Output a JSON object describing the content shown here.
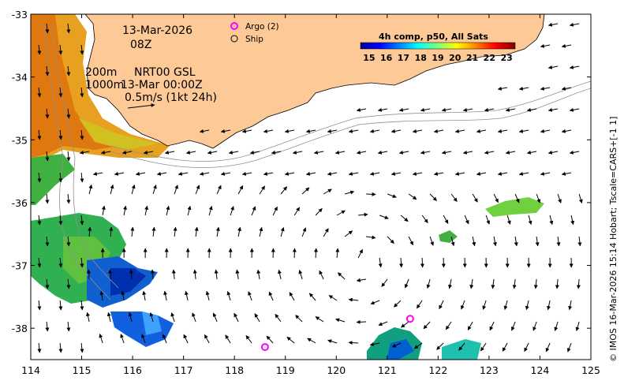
{
  "map": {
    "date_label": "13-Mar-2026",
    "time_label": "08Z",
    "depth_shallow": "200m",
    "depth_deep": "1000m",
    "product_line1": "NRT00 GSL",
    "product_line2": "13-Mar 00:00Z",
    "scale_label": "0.5m/s (1kt 24h)",
    "side_credit": "© IMOS 16-Mar-2026 15:14 Hobart; Tscale=CARS+[-1 1]",
    "x_ticks": [
      "114",
      "115",
      "116",
      "117",
      "118",
      "119",
      "120",
      "121",
      "122",
      "123",
      "124",
      "125"
    ],
    "y_ticks": [
      "-33",
      "-34",
      "-35",
      "-36",
      "-37",
      "-38"
    ],
    "x_range": [
      114,
      125
    ],
    "y_range": [
      -38.5,
      -33
    ],
    "colors": {
      "land": "#fdc997",
      "argo": "#ff00ff",
      "ocean": "#ffffff"
    }
  },
  "legend": {
    "argo_label": "Argo (2)",
    "ship_label": "Ship"
  },
  "colorbar": {
    "title": "4h comp, p50, All Sats",
    "ticks": [
      "15",
      "16",
      "17",
      "18",
      "19",
      "20",
      "21",
      "22",
      "23"
    ],
    "range": [
      14.5,
      23.5
    ]
  },
  "argo_floats": [
    {
      "lon": 118.6,
      "lat": -38.3
    },
    {
      "lon": 121.45,
      "lat": -37.85
    }
  ]
}
